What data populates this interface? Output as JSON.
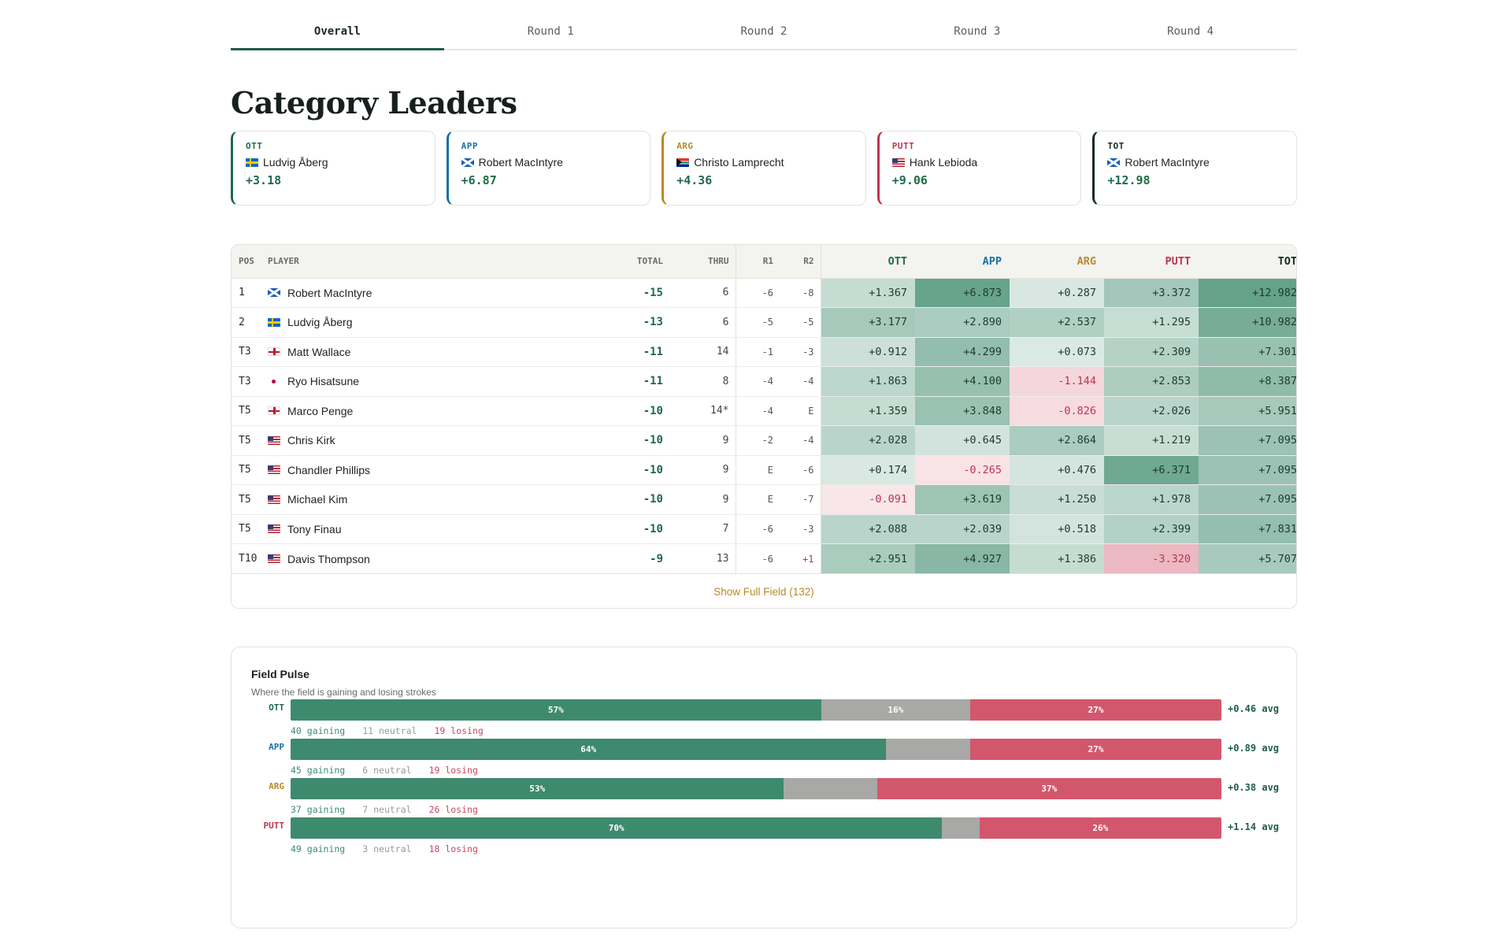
{
  "tabs": [
    {
      "label": "Overall",
      "active": true
    },
    {
      "label": "Round 1",
      "active": false
    },
    {
      "label": "Round 2",
      "active": false
    },
    {
      "label": "Round 3",
      "active": false
    },
    {
      "label": "Round 4",
      "active": false
    }
  ],
  "page_title": "Category Leaders",
  "colors": {
    "ott": "#1f6b49",
    "app": "#1b6fa8",
    "arg": "#b8892a",
    "putt": "#c0334d",
    "tot": "#1b2a22"
  },
  "leaders": [
    {
      "cat": "OTT",
      "flag": "swe",
      "name": "Ludvig Åberg",
      "value": "+3.18",
      "color": "#1f6b49"
    },
    {
      "cat": "APP",
      "flag": "sco",
      "name": "Robert MacIntyre",
      "value": "+6.87",
      "color": "#1b6fa8"
    },
    {
      "cat": "ARG",
      "flag": "rsa",
      "name": "Christo Lamprecht",
      "value": "+4.36",
      "color": "#b8892a"
    },
    {
      "cat": "PUTT",
      "flag": "usa",
      "name": "Hank Lebioda",
      "value": "+9.06",
      "color": "#c0334d"
    },
    {
      "cat": "TOT",
      "flag": "sco",
      "name": "Robert MacIntyre",
      "value": "+12.98",
      "color": "#1b2a22"
    }
  ],
  "table": {
    "headers": {
      "pos": "POS",
      "player": "PLAYER",
      "total": "TOTAL",
      "thru": "THRU",
      "r1": "R1",
      "r2": "R2",
      "ott": "OTT",
      "app": "APP",
      "arg": "ARG",
      "putt": "PUTT",
      "tot": "TOT"
    },
    "rows": [
      {
        "pos": "1",
        "flag": "sco",
        "player": "Robert MacIntyre",
        "total": "-15",
        "thru": "6",
        "r1": "-6",
        "r2": "-8",
        "ott": "+1.367",
        "app": "+6.873",
        "arg": "+0.287",
        "putt": "+3.372",
        "tot": "+12.982"
      },
      {
        "pos": "2",
        "flag": "swe",
        "player": "Ludvig Åberg",
        "total": "-13",
        "thru": "6",
        "r1": "-5",
        "r2": "-5",
        "ott": "+3.177",
        "app": "+2.890",
        "arg": "+2.537",
        "putt": "+1.295",
        "tot": "+10.982"
      },
      {
        "pos": "T3",
        "flag": "eng",
        "player": "Matt Wallace",
        "total": "-11",
        "thru": "14",
        "r1": "-1",
        "r2": "-3",
        "ott": "+0.912",
        "app": "+4.299",
        "arg": "+0.073",
        "putt": "+2.309",
        "tot": "+7.301"
      },
      {
        "pos": "T3",
        "flag": "jpn",
        "player": "Ryo Hisatsune",
        "total": "-11",
        "thru": "8",
        "r1": "-4",
        "r2": "-4",
        "ott": "+1.863",
        "app": "+4.100",
        "arg": "-1.144",
        "putt": "+2.853",
        "tot": "+8.387"
      },
      {
        "pos": "T5",
        "flag": "eng",
        "player": "Marco Penge",
        "total": "-10",
        "thru": "14*",
        "r1": "-4",
        "r2": "E",
        "ott": "+1.359",
        "app": "+3.848",
        "arg": "-0.826",
        "putt": "+2.026",
        "tot": "+5.951"
      },
      {
        "pos": "T5",
        "flag": "usa",
        "player": "Chris Kirk",
        "total": "-10",
        "thru": "9",
        "r1": "-2",
        "r2": "-4",
        "ott": "+2.028",
        "app": "+0.645",
        "arg": "+2.864",
        "putt": "+1.219",
        "tot": "+7.095"
      },
      {
        "pos": "T5",
        "flag": "usa",
        "player": "Chandler Phillips",
        "total": "-10",
        "thru": "9",
        "r1": "E",
        "r2": "-6",
        "ott": "+0.174",
        "app": "-0.265",
        "arg": "+0.476",
        "putt": "+6.371",
        "tot": "+7.095"
      },
      {
        "pos": "T5",
        "flag": "usa",
        "player": "Michael Kim",
        "total": "-10",
        "thru": "9",
        "r1": "E",
        "r2": "-7",
        "ott": "-0.091",
        "app": "+3.619",
        "arg": "+1.250",
        "putt": "+1.978",
        "tot": "+7.095"
      },
      {
        "pos": "T5",
        "flag": "usa",
        "player": "Tony Finau",
        "total": "-10",
        "thru": "7",
        "r1": "-6",
        "r2": "-3",
        "ott": "+2.088",
        "app": "+2.039",
        "arg": "+0.518",
        "putt": "+2.399",
        "tot": "+7.831"
      },
      {
        "pos": "T10",
        "flag": "usa",
        "player": "Davis Thompson",
        "total": "-9",
        "thru": "13",
        "r1": "-6",
        "r2": "+1",
        "ott": "+2.951",
        "app": "+4.927",
        "arg": "+1.386",
        "putt": "-3.320",
        "tot": "+5.707"
      }
    ],
    "show_full_label": "Show Full Field (132)"
  },
  "field_pulse": {
    "title": "Field Pulse",
    "subtitle": "Where the field is gaining and losing strokes",
    "rows": [
      {
        "cat": "OTT",
        "color": "#1f6b49",
        "gain_pct": 57,
        "neutral_pct": 16,
        "lose_pct": 27,
        "gain_label": "57%",
        "neutral_label": "16%",
        "lose_label": "27%",
        "avg": "+0.46 avg",
        "gaining": "40 gaining",
        "neutral": "11 neutral",
        "losing": "19 losing"
      },
      {
        "cat": "APP",
        "color": "#1b6fa8",
        "gain_pct": 64,
        "neutral_pct": 9,
        "lose_pct": 27,
        "gain_label": "64%",
        "neutral_label": "",
        "lose_label": "27%",
        "avg": "+0.89 avg",
        "gaining": "45 gaining",
        "neutral": "6 neutral",
        "losing": "19 losing"
      },
      {
        "cat": "ARG",
        "color": "#b8892a",
        "gain_pct": 53,
        "neutral_pct": 10,
        "lose_pct": 37,
        "gain_label": "53%",
        "neutral_label": "",
        "lose_label": "37%",
        "avg": "+0.38 avg",
        "gaining": "37 gaining",
        "neutral": "7 neutral",
        "losing": "26 losing"
      },
      {
        "cat": "PUTT",
        "color": "#c0334d",
        "gain_pct": 70,
        "neutral_pct": 4,
        "lose_pct": 26,
        "gain_label": "70%",
        "neutral_label": "",
        "lose_label": "26%",
        "avg": "+1.14 avg",
        "gaining": "49 gaining",
        "neutral": "3 neutral",
        "losing": "18 losing"
      }
    ]
  }
}
